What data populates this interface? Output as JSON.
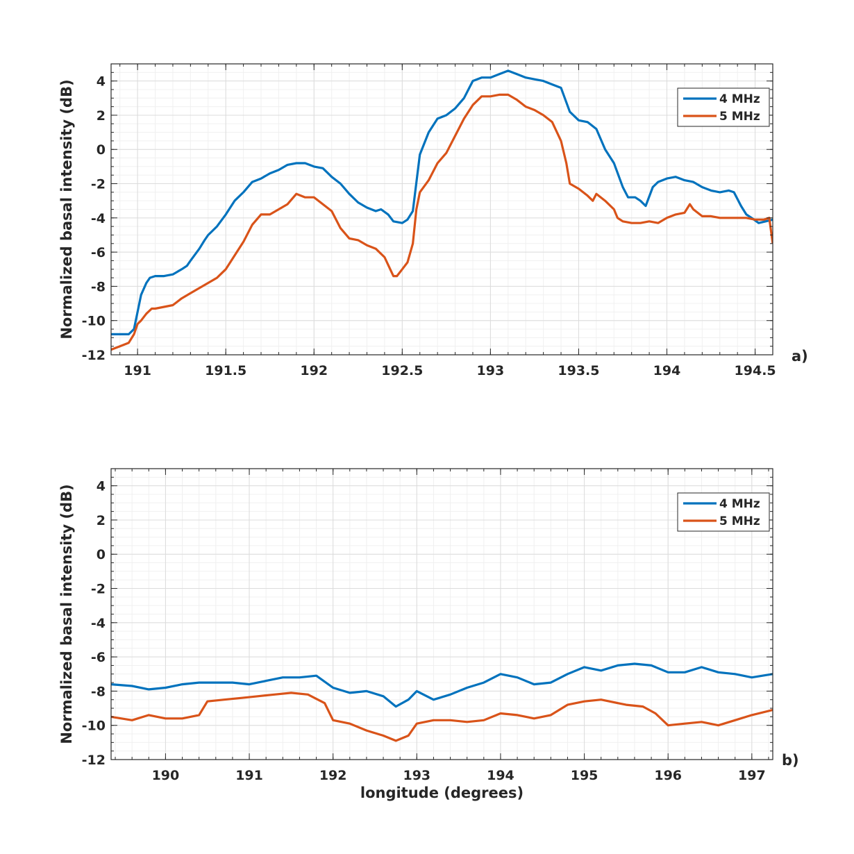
{
  "chart_data": [
    {
      "type": "line",
      "panel_label": "a)",
      "xlabel": "",
      "ylabel": "Normalized basal intensity (dB)",
      "xlim": [
        190.85,
        194.6
      ],
      "ylim": [
        -12,
        5
      ],
      "xticks": [
        191,
        191.5,
        192,
        192.5,
        193,
        193.5,
        194,
        194.5
      ],
      "xtick_labels": [
        "191",
        "191.5",
        "192",
        "192.5",
        "193",
        "193.5",
        "194",
        "194.5"
      ],
      "yticks": [
        -12,
        -10,
        -8,
        -6,
        -4,
        -2,
        0,
        2,
        4
      ],
      "ytick_labels": [
        "-12",
        "-10",
        "-8",
        "-6",
        "-4",
        "-2",
        "0",
        "2",
        "4"
      ],
      "grid": true,
      "legend": "top-right",
      "series": [
        {
          "name": "4 MHz",
          "color": "#0072bd",
          "x": [
            190.85,
            190.95,
            190.98,
            191.0,
            191.02,
            191.05,
            191.07,
            191.1,
            191.15,
            191.2,
            191.25,
            191.28,
            191.3,
            191.35,
            191.38,
            191.4,
            191.45,
            191.5,
            191.55,
            191.6,
            191.65,
            191.7,
            191.75,
            191.8,
            191.85,
            191.9,
            191.95,
            192.0,
            192.05,
            192.1,
            192.15,
            192.2,
            192.25,
            192.3,
            192.35,
            192.38,
            192.42,
            192.45,
            192.5,
            192.53,
            192.56,
            192.6,
            192.65,
            192.7,
            192.75,
            192.8,
            192.85,
            192.9,
            192.95,
            193.0,
            193.05,
            193.1,
            193.15,
            193.2,
            193.25,
            193.3,
            193.35,
            193.4,
            193.45,
            193.5,
            193.55,
            193.6,
            193.65,
            193.7,
            193.75,
            193.78,
            193.82,
            193.85,
            193.88,
            193.92,
            193.95,
            194.0,
            194.05,
            194.1,
            194.15,
            194.2,
            194.25,
            194.3,
            194.35,
            194.38,
            194.42,
            194.45,
            194.48,
            194.52,
            194.56,
            194.6
          ],
          "y": [
            -10.8,
            -10.8,
            -10.5,
            -9.5,
            -8.5,
            -7.8,
            -7.5,
            -7.4,
            -7.4,
            -7.3,
            -7.0,
            -6.8,
            -6.5,
            -5.8,
            -5.3,
            -5.0,
            -4.5,
            -3.8,
            -3.0,
            -2.5,
            -1.9,
            -1.7,
            -1.4,
            -1.2,
            -0.9,
            -0.8,
            -0.8,
            -1.0,
            -1.1,
            -1.6,
            -2.0,
            -2.6,
            -3.1,
            -3.4,
            -3.6,
            -3.5,
            -3.8,
            -4.2,
            -4.3,
            -4.1,
            -3.6,
            -0.3,
            1.0,
            1.8,
            2.0,
            2.4,
            3.0,
            4.0,
            4.2,
            4.2,
            4.4,
            4.6,
            4.4,
            4.2,
            4.1,
            4.0,
            3.8,
            3.6,
            2.2,
            1.7,
            1.6,
            1.2,
            0.0,
            -0.8,
            -2.2,
            -2.8,
            -2.8,
            -3.0,
            -3.3,
            -2.2,
            -1.9,
            -1.7,
            -1.6,
            -1.8,
            -1.9,
            -2.2,
            -2.4,
            -2.5,
            -2.4,
            -2.5,
            -3.3,
            -3.8,
            -4.0,
            -4.3,
            -4.2,
            -4.1
          ]
        },
        {
          "name": "5 MHz",
          "color": "#d95319",
          "x": [
            190.85,
            190.9,
            190.95,
            190.98,
            191.0,
            191.02,
            191.05,
            191.08,
            191.1,
            191.15,
            191.2,
            191.25,
            191.3,
            191.35,
            191.4,
            191.45,
            191.48,
            191.5,
            191.55,
            191.6,
            191.65,
            191.7,
            191.75,
            191.8,
            191.85,
            191.9,
            191.95,
            192.0,
            192.05,
            192.1,
            192.15,
            192.2,
            192.25,
            192.3,
            192.35,
            192.4,
            192.45,
            192.47,
            192.5,
            192.53,
            192.56,
            192.58,
            192.6,
            192.65,
            192.7,
            192.75,
            192.8,
            192.85,
            192.9,
            192.95,
            193.0,
            193.05,
            193.1,
            193.15,
            193.2,
            193.25,
            193.3,
            193.35,
            193.4,
            193.43,
            193.45,
            193.5,
            193.55,
            193.58,
            193.6,
            193.65,
            193.7,
            193.72,
            193.75,
            193.8,
            193.85,
            193.9,
            193.95,
            194.0,
            194.05,
            194.1,
            194.13,
            194.15,
            194.2,
            194.25,
            194.3,
            194.35,
            194.4,
            194.45,
            194.5,
            194.55,
            194.58,
            194.6
          ],
          "y": [
            -11.7,
            -11.5,
            -11.3,
            -10.8,
            -10.2,
            -10.0,
            -9.6,
            -9.3,
            -9.3,
            -9.2,
            -9.1,
            -8.7,
            -8.4,
            -8.1,
            -7.8,
            -7.5,
            -7.2,
            -7.0,
            -6.2,
            -5.4,
            -4.4,
            -3.8,
            -3.8,
            -3.5,
            -3.2,
            -2.6,
            -2.8,
            -2.8,
            -3.2,
            -3.6,
            -4.6,
            -5.2,
            -5.3,
            -5.6,
            -5.8,
            -6.3,
            -7.4,
            -7.4,
            -7.0,
            -6.6,
            -5.5,
            -3.5,
            -2.5,
            -1.8,
            -0.8,
            -0.2,
            0.8,
            1.8,
            2.6,
            3.1,
            3.1,
            3.2,
            3.2,
            2.9,
            2.5,
            2.3,
            2.0,
            1.6,
            0.5,
            -0.8,
            -2.0,
            -2.3,
            -2.7,
            -3.0,
            -2.6,
            -3.0,
            -3.5,
            -4.0,
            -4.2,
            -4.3,
            -4.3,
            -4.2,
            -4.3,
            -4.0,
            -3.8,
            -3.7,
            -3.2,
            -3.5,
            -3.9,
            -3.9,
            -4.0,
            -4.0,
            -4.0,
            -4.0,
            -4.1,
            -4.1,
            -4.0,
            -5.5
          ]
        }
      ]
    },
    {
      "type": "line",
      "panel_label": "b)",
      "xlabel": "longitude (degrees)",
      "ylabel": "Normalized basal intensity (dB)",
      "xlim": [
        189.35,
        197.25
      ],
      "ylim": [
        -12,
        5
      ],
      "xticks": [
        190,
        191,
        192,
        193,
        194,
        195,
        196,
        197
      ],
      "xtick_labels": [
        "190",
        "191",
        "192",
        "193",
        "194",
        "195",
        "196",
        "197"
      ],
      "yticks": [
        -12,
        -10,
        -8,
        -6,
        -4,
        -2,
        0,
        2,
        4
      ],
      "ytick_labels": [
        "-12",
        "-10",
        "-8",
        "-6",
        "-4",
        "-2",
        "0",
        "2",
        "4"
      ],
      "grid": true,
      "legend": "top-right",
      "series": [
        {
          "name": "4 MHz",
          "color": "#0072bd",
          "x": [
            189.35,
            189.6,
            189.8,
            190.0,
            190.2,
            190.4,
            190.6,
            190.8,
            191.0,
            191.2,
            191.4,
            191.6,
            191.8,
            192.0,
            192.2,
            192.4,
            192.6,
            192.75,
            192.9,
            193.0,
            193.2,
            193.4,
            193.6,
            193.8,
            194.0,
            194.2,
            194.4,
            194.6,
            194.8,
            195.0,
            195.2,
            195.4,
            195.6,
            195.8,
            196.0,
            196.2,
            196.4,
            196.6,
            196.8,
            197.0,
            197.25
          ],
          "y": [
            -7.6,
            -7.7,
            -7.9,
            -7.8,
            -7.6,
            -7.5,
            -7.5,
            -7.5,
            -7.6,
            -7.4,
            -7.2,
            -7.2,
            -7.1,
            -7.8,
            -8.1,
            -8.0,
            -8.3,
            -8.9,
            -8.5,
            -8.0,
            -8.5,
            -8.2,
            -7.8,
            -7.5,
            -7.0,
            -7.2,
            -7.6,
            -7.5,
            -7.0,
            -6.6,
            -6.8,
            -6.5,
            -6.4,
            -6.5,
            -6.9,
            -6.9,
            -6.6,
            -6.9,
            -7.0,
            -7.2,
            -7.0
          ]
        },
        {
          "name": "5 MHz",
          "color": "#d95319",
          "x": [
            189.35,
            189.6,
            189.8,
            190.0,
            190.2,
            190.4,
            190.5,
            190.7,
            190.9,
            191.1,
            191.3,
            191.5,
            191.7,
            191.9,
            192.0,
            192.2,
            192.4,
            192.6,
            192.75,
            192.9,
            193.0,
            193.2,
            193.4,
            193.6,
            193.8,
            194.0,
            194.2,
            194.4,
            194.6,
            194.8,
            195.0,
            195.2,
            195.3,
            195.5,
            195.7,
            195.85,
            196.0,
            196.2,
            196.4,
            196.6,
            196.8,
            197.0,
            197.25
          ],
          "y": [
            -9.5,
            -9.7,
            -9.4,
            -9.6,
            -9.6,
            -9.4,
            -8.6,
            -8.5,
            -8.4,
            -8.3,
            -8.2,
            -8.1,
            -8.2,
            -8.7,
            -9.7,
            -9.9,
            -10.3,
            -10.6,
            -10.9,
            -10.6,
            -9.9,
            -9.7,
            -9.7,
            -9.8,
            -9.7,
            -9.3,
            -9.4,
            -9.6,
            -9.4,
            -8.8,
            -8.6,
            -8.5,
            -8.6,
            -8.8,
            -8.9,
            -9.3,
            -10.0,
            -9.9,
            -9.8,
            -10.0,
            -9.7,
            -9.4,
            -9.1
          ]
        }
      ]
    }
  ]
}
